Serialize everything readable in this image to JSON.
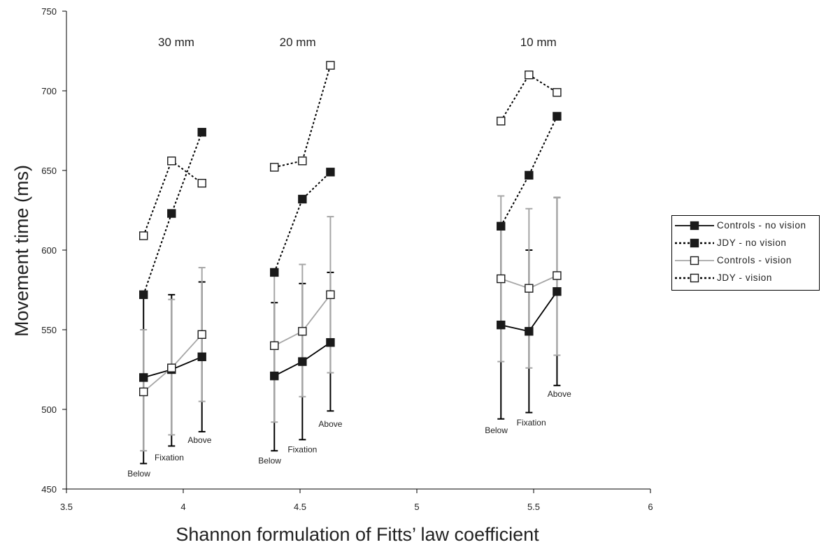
{
  "chart_data": {
    "type": "line",
    "xlabel": "Shannon formulation of Fitts’ law coefficient",
    "ylabel": "Movement time (ms)",
    "xlim": [
      3.5,
      6
    ],
    "ylim": [
      450,
      750
    ],
    "xticks": [
      3.5,
      4,
      4.5,
      5,
      5.5,
      6
    ],
    "yticks": [
      450,
      500,
      550,
      600,
      650,
      700,
      750
    ],
    "grid": false,
    "legend_position": "right",
    "group_labels": [
      {
        "text": "30 mm",
        "x": 3.97,
        "y": 728
      },
      {
        "text": "20 mm",
        "x": 4.49,
        "y": 728
      },
      {
        "text": "10 mm",
        "x": 5.52,
        "y": 728
      }
    ],
    "condition_labels": [
      {
        "text": "Below",
        "x": 3.81,
        "y": 458
      },
      {
        "text": "Fixation",
        "x": 3.94,
        "y": 468
      },
      {
        "text": "Above",
        "x": 4.07,
        "y": 479
      },
      {
        "text": "Below",
        "x": 4.37,
        "y": 466
      },
      {
        "text": "Fixation",
        "x": 4.51,
        "y": 473
      },
      {
        "text": "Above",
        "x": 4.63,
        "y": 489
      },
      {
        "text": "Below",
        "x": 5.34,
        "y": 485
      },
      {
        "text": "Fixation",
        "x": 5.49,
        "y": 490
      },
      {
        "text": "Above",
        "x": 5.61,
        "y": 508
      }
    ],
    "series": [
      {
        "name": "Controls - no vision",
        "line": "solid",
        "line_color": "#000000",
        "marker": "filled-square",
        "groups": [
          [
            {
              "x": 3.83,
              "y": 520,
              "err_low": 466,
              "err_high": 572
            },
            {
              "x": 3.95,
              "y": 525,
              "err_low": 477,
              "err_high": 572
            },
            {
              "x": 4.08,
              "y": 533,
              "err_low": 486,
              "err_high": 580
            }
          ],
          [
            {
              "x": 4.39,
              "y": 521,
              "err_low": 474,
              "err_high": 567
            },
            {
              "x": 4.51,
              "y": 530,
              "err_low": 481,
              "err_high": 579
            },
            {
              "x": 4.63,
              "y": 542,
              "err_low": 499,
              "err_high": 586
            }
          ],
          [
            {
              "x": 5.36,
              "y": 553,
              "err_low": 494,
              "err_high": 614
            },
            {
              "x": 5.48,
              "y": 549,
              "err_low": 498,
              "err_high": 600
            },
            {
              "x": 5.6,
              "y": 574,
              "err_low": 515,
              "err_high": 633
            }
          ]
        ]
      },
      {
        "name": "JDY - no vision",
        "line": "dotted",
        "line_color": "#000000",
        "marker": "filled-square",
        "groups": [
          [
            {
              "x": 3.83,
              "y": 572
            },
            {
              "x": 3.95,
              "y": 623
            },
            {
              "x": 4.08,
              "y": 674
            }
          ],
          [
            {
              "x": 4.39,
              "y": 586
            },
            {
              "x": 4.51,
              "y": 632
            },
            {
              "x": 4.63,
              "y": 649
            }
          ],
          [
            {
              "x": 5.36,
              "y": 615
            },
            {
              "x": 5.48,
              "y": 647
            },
            {
              "x": 5.6,
              "y": 684
            }
          ]
        ]
      },
      {
        "name": "Controls - vision",
        "line": "solid",
        "line_color": "#a6a6a6",
        "marker": "open-square",
        "groups": [
          [
            {
              "x": 3.83,
              "y": 511,
              "err_low": 474,
              "err_high": 550
            },
            {
              "x": 3.95,
              "y": 526,
              "err_low": 484,
              "err_high": 569
            },
            {
              "x": 4.08,
              "y": 547,
              "err_low": 505,
              "err_high": 589
            }
          ],
          [
            {
              "x": 4.39,
              "y": 540,
              "err_low": 492,
              "err_high": 586
            },
            {
              "x": 4.51,
              "y": 549,
              "err_low": 508,
              "err_high": 591
            },
            {
              "x": 4.63,
              "y": 572,
              "err_low": 523,
              "err_high": 621
            }
          ],
          [
            {
              "x": 5.36,
              "y": 582,
              "err_low": 530,
              "err_high": 634
            },
            {
              "x": 5.48,
              "y": 576,
              "err_low": 526,
              "err_high": 626
            },
            {
              "x": 5.6,
              "y": 584,
              "err_low": 534,
              "err_high": 633
            }
          ]
        ]
      },
      {
        "name": "JDY - vision",
        "line": "dotted",
        "line_color": "#000000",
        "marker": "open-square",
        "groups": [
          [
            {
              "x": 3.83,
              "y": 609
            },
            {
              "x": 3.95,
              "y": 656
            },
            {
              "x": 4.08,
              "y": 642
            }
          ],
          [
            {
              "x": 4.39,
              "y": 652
            },
            {
              "x": 4.51,
              "y": 656
            },
            {
              "x": 4.63,
              "y": 716
            }
          ],
          [
            {
              "x": 5.36,
              "y": 681
            },
            {
              "x": 5.48,
              "y": 710
            },
            {
              "x": 5.6,
              "y": 699
            }
          ]
        ]
      }
    ]
  }
}
